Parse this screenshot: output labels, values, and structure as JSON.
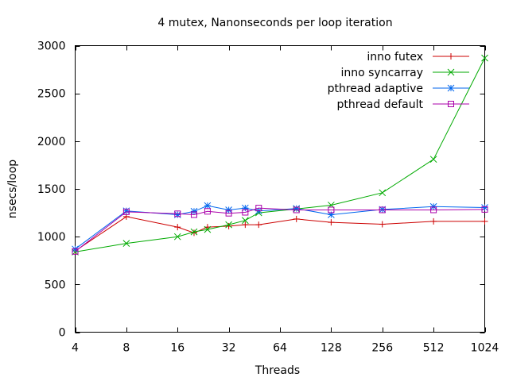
{
  "chart_data": {
    "type": "line",
    "title": "4 mutex, Nanonseconds per loop iteration",
    "xlabel": "Threads",
    "ylabel": "nsecs/loop",
    "x_scale": "log2",
    "xlim": [
      4,
      1024
    ],
    "ylim": [
      0,
      3000
    ],
    "x_ticks": [
      4,
      8,
      16,
      32,
      64,
      128,
      256,
      512,
      1024
    ],
    "x_tick_labels": [
      "4",
      "8",
      "16",
      "32",
      "64",
      "128",
      "256",
      "512",
      "1024"
    ],
    "y_ticks": [
      0,
      500,
      1000,
      1500,
      2000,
      2500,
      3000
    ],
    "y_tick_labels": [
      "0",
      "500",
      "1000",
      "1500",
      "2000",
      "2500",
      "3000"
    ],
    "grid": false,
    "legend_position": "top-right",
    "series": [
      {
        "name": "inno futex",
        "color": "#cc0000",
        "marker": "plus",
        "x": [
          4,
          8,
          16,
          20,
          24,
          32,
          40,
          48,
          80,
          128,
          256,
          512,
          1024
        ],
        "y": [
          850,
          1210,
          1100,
          1040,
          1100,
          1110,
          1125,
          1125,
          1185,
          1150,
          1130,
          1160,
          1160
        ]
      },
      {
        "name": "inno syncarray",
        "color": "#00aa00",
        "marker": "cross",
        "x": [
          4,
          8,
          16,
          20,
          24,
          32,
          40,
          48,
          80,
          128,
          256,
          512,
          1024
        ],
        "y": [
          840,
          930,
          1000,
          1050,
          1075,
          1125,
          1170,
          1250,
          1290,
          1330,
          1460,
          1810,
          2870
        ]
      },
      {
        "name": "pthread adaptive",
        "color": "#0066ee",
        "marker": "star",
        "x": [
          4,
          8,
          16,
          20,
          24,
          32,
          40,
          48,
          80,
          128,
          256,
          512,
          1024
        ],
        "y": [
          870,
          1270,
          1230,
          1265,
          1325,
          1280,
          1300,
          1270,
          1295,
          1230,
          1285,
          1315,
          1305
        ]
      },
      {
        "name": "pthread default",
        "color": "#aa00aa",
        "marker": "square",
        "x": [
          4,
          8,
          16,
          20,
          24,
          32,
          40,
          48,
          80,
          128,
          256,
          512,
          1024
        ],
        "y": [
          845,
          1260,
          1240,
          1230,
          1265,
          1245,
          1255,
          1300,
          1280,
          1280,
          1280,
          1280,
          1285
        ]
      }
    ]
  }
}
